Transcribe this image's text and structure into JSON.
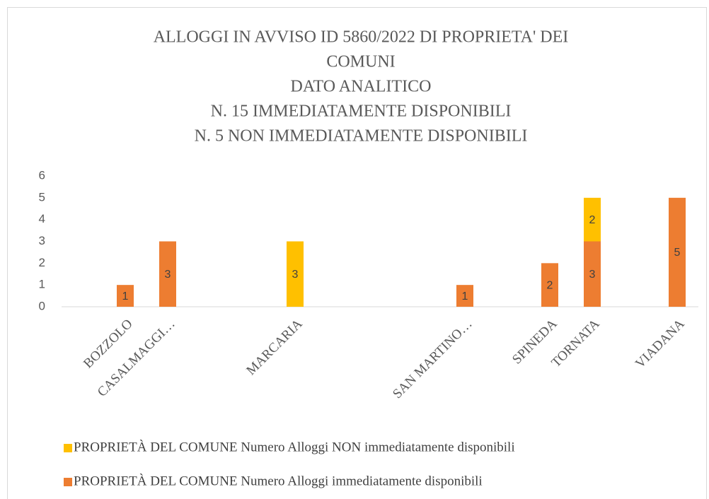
{
  "chart_data": {
    "type": "stacked_bar",
    "title": [
      "ALLOGGI IN AVVISO ID 5860/2022 DI PROPRIETA' DEI",
      "COMUNI",
      "DATO ANALITICO",
      "N. 15 IMMEDIATAMENTE DISPONIBILI",
      "N. 5 NON IMMEDIATAMENTE DISPONIBILI"
    ],
    "categories": [
      null,
      "BOZZOLO",
      "CASALMAGGI…",
      null,
      null,
      "MARCARIA",
      null,
      null,
      null,
      "SAN MARTINO…",
      null,
      "SPINEDA",
      "TORNATA",
      null,
      "VIADANA"
    ],
    "series": [
      {
        "name": "PROPRIETÀ DEL COMUNE Numero Alloggi immediatamente disponibili",
        "color": "#ED7D31",
        "values": [
          null,
          1,
          3,
          null,
          null,
          null,
          null,
          null,
          null,
          1,
          null,
          2,
          3,
          null,
          5
        ]
      },
      {
        "name": "PROPRIETÀ DEL COMUNE Numero Alloggi NON immediatamente disponibili",
        "color": "#FFC000",
        "values": [
          null,
          null,
          null,
          null,
          null,
          3,
          null,
          null,
          null,
          null,
          null,
          null,
          2,
          null,
          null
        ]
      }
    ],
    "ylim": [
      0,
      6
    ],
    "yticks": [
      0,
      1,
      2,
      3,
      4,
      5,
      6
    ],
    "grid": false,
    "legend": "bottom"
  }
}
